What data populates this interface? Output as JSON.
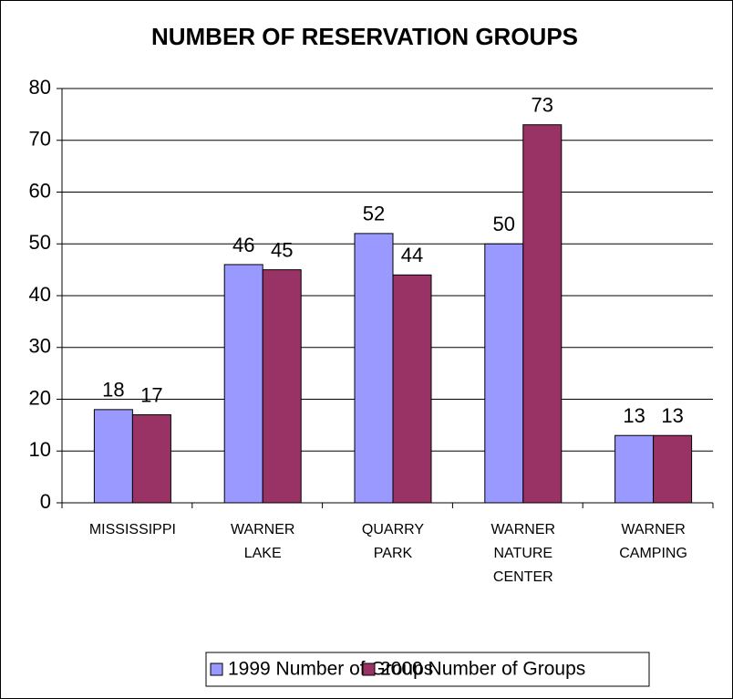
{
  "chart_data": {
    "type": "bar",
    "title": "NUMBER OF RESERVATION GROUPS",
    "categories": [
      [
        "MISSISSIPPI"
      ],
      [
        "WARNER",
        "LAKE"
      ],
      [
        "QUARRY",
        "PARK"
      ],
      [
        "WARNER",
        "NATURE",
        "CENTER"
      ],
      [
        "WARNER",
        "CAMPING"
      ]
    ],
    "series": [
      {
        "name": "1999 Number of Groups",
        "color": "#9999ff",
        "values": [
          18,
          46,
          52,
          50,
          13
        ]
      },
      {
        "name": "2000 Number of Groups",
        "color": "#993366",
        "values": [
          17,
          45,
          44,
          73,
          13
        ]
      }
    ],
    "ylim": [
      0,
      80
    ],
    "yticks": [
      0,
      10,
      20,
      30,
      40,
      50,
      60,
      70,
      80
    ],
    "grid": true,
    "legend": "bottom"
  }
}
